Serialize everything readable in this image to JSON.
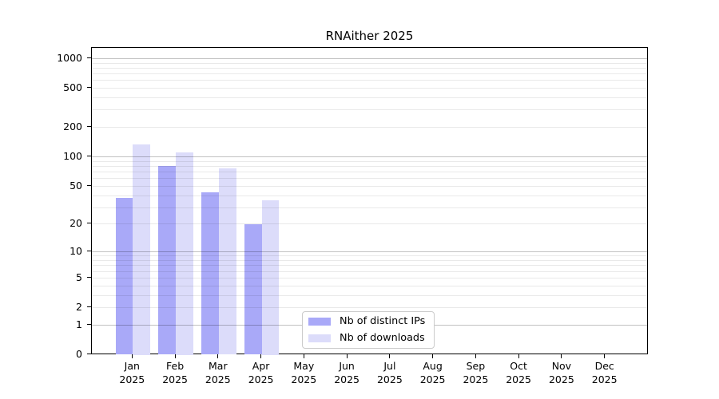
{
  "title": "RNAither 2025",
  "chart_data": {
    "type": "bar",
    "title": "RNAither 2025",
    "categories": [
      "Jan",
      "Feb",
      "Mar",
      "Apr",
      "May",
      "Jun",
      "Jul",
      "Aug",
      "Sep",
      "Oct",
      "Nov",
      "Dec"
    ],
    "category_year": "2025",
    "series": [
      {
        "name": "Nb of distinct IPs",
        "color": "#a9a9f8",
        "values": [
          38,
          80,
          43,
          20,
          null,
          null,
          null,
          null,
          null,
          null,
          null,
          null
        ]
      },
      {
        "name": "Nb of downloads",
        "color": "#dcdcfa",
        "values": [
          134,
          112,
          76,
          36,
          null,
          null,
          null,
          null,
          null,
          null,
          null,
          null
        ]
      }
    ],
    "yscale": "log1p",
    "y_ticks": [
      0,
      1,
      2,
      5,
      10,
      20,
      50,
      100,
      200,
      500,
      1000
    ],
    "ylim": [
      0,
      1270
    ],
    "xlabel": "",
    "ylabel": "",
    "grid": {
      "orientation": "horizontal",
      "major_at": [
        1,
        10,
        100,
        1000
      ],
      "minor": "2-9 per decade"
    },
    "legend_position": "inside lower center"
  },
  "legend": {
    "items": [
      {
        "label": "Nb of distinct IPs"
      },
      {
        "label": "Nb of downloads"
      }
    ]
  },
  "colors": {
    "background": "#ffffff",
    "axis": "#000000",
    "bar_distinct_ips": "#a9a9f8",
    "bar_downloads": "#dcdcfa",
    "grid_major": "#b9b9b9",
    "grid_minor": "#e9e9e9"
  }
}
